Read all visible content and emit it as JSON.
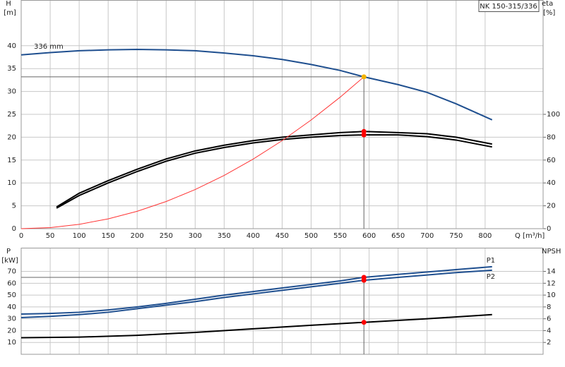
{
  "title": "NK 150-315/336",
  "chart_data": [
    {
      "type": "line",
      "x_label": "Q [m³/h]",
      "y_label": "H",
      "y_unit": "[m]",
      "y2_label": "eta",
      "y2_unit": "[%]",
      "xlim": [
        0,
        900
      ],
      "xticks": [
        0,
        50,
        100,
        150,
        200,
        250,
        300,
        350,
        400,
        450,
        500,
        550,
        600,
        650,
        700,
        750,
        800
      ],
      "ylim": [
        0,
        50
      ],
      "yticks": [
        0,
        5,
        10,
        15,
        20,
        25,
        30,
        35,
        40
      ],
      "y2lim": [
        0,
        200
      ],
      "y2ticks": [
        0,
        20,
        40,
        60,
        80,
        100
      ],
      "grid": true,
      "annotation": "336 mm",
      "series": [
        {
          "color": "#1f4f8f",
          "x": [
            0,
            50,
            100,
            150,
            200,
            250,
            300,
            350,
            400,
            450,
            500,
            550,
            591,
            650,
            700,
            750,
            812
          ],
          "values": [
            38,
            38.5,
            38.9,
            39.1,
            39.2,
            39.1,
            38.9,
            38.4,
            37.8,
            37,
            35.9,
            34.6,
            33.2,
            31.5,
            29.8,
            27.3,
            23.8
          ]
        },
        {
          "color": "#000000",
          "axis": "y2",
          "x": [
            61,
            100,
            150,
            200,
            250,
            300,
            350,
            400,
            450,
            500,
            550,
            591,
            650,
            700,
            750,
            812
          ],
          "values": [
            19,
            31,
            42,
            52,
            61,
            68,
            73,
            77,
            80,
            82,
            84,
            85,
            84,
            83,
            80,
            74
          ]
        },
        {
          "color": "#000000",
          "axis": "y2",
          "x": [
            61,
            100,
            150,
            200,
            250,
            300,
            350,
            400,
            450,
            500,
            550,
            591,
            650,
            700,
            750,
            812
          ],
          "values": [
            18,
            29,
            40,
            50,
            59,
            66,
            71,
            75,
            78,
            80,
            81.5,
            82,
            82,
            80.5,
            77.5,
            71.5
          ]
        },
        {
          "color": "#ff3333",
          "x": [
            0,
            50,
            100,
            150,
            200,
            250,
            300,
            350,
            400,
            450,
            500,
            550,
            591
          ],
          "values": [
            0,
            0.24,
            0.95,
            2.14,
            3.8,
            5.94,
            8.55,
            11.64,
            15.21,
            19.25,
            23.76,
            28.75,
            33.2
          ]
        }
      ],
      "points": [
        {
          "x": 591,
          "y": 33.2,
          "color": "#f5b400"
        },
        {
          "x": 591,
          "y": 85,
          "color": "#ff0000",
          "axis": "y2"
        },
        {
          "x": 591,
          "y": 82,
          "color": "#ff0000",
          "axis": "y2"
        }
      ]
    },
    {
      "type": "line",
      "y_label": "P",
      "y_unit": "[kW]",
      "y2_label": "NPSH",
      "xlim": [
        0,
        900
      ],
      "ylim": [
        0,
        90
      ],
      "yticks": [
        10,
        20,
        30,
        40,
        50,
        60,
        70
      ],
      "y2lim": [
        0,
        18
      ],
      "y2ticks": [
        2,
        4,
        6,
        8,
        10,
        12,
        14
      ],
      "grid": true,
      "series": [
        {
          "name": "P1",
          "color": "#1f4f8f",
          "x": [
            0,
            50,
            100,
            150,
            200,
            250,
            300,
            350,
            400,
            450,
            500,
            550,
            591,
            650,
            700,
            750,
            812
          ],
          "values": [
            34,
            34.5,
            35.5,
            37.5,
            40,
            43,
            46.5,
            50,
            53,
            56,
            59,
            62,
            65,
            67.5,
            69.5,
            71.5,
            74
          ]
        },
        {
          "name": "P2",
          "color": "#1f4f8f",
          "x": [
            0,
            50,
            100,
            150,
            200,
            250,
            300,
            350,
            400,
            450,
            500,
            550,
            591,
            650,
            700,
            750,
            812
          ],
          "values": [
            31,
            32,
            33.5,
            35.5,
            38.5,
            41.5,
            44.5,
            48,
            51,
            54,
            57,
            60,
            62.5,
            65,
            67,
            69,
            71
          ]
        },
        {
          "color": "#000000",
          "axis": "y2",
          "x": [
            0,
            100,
            200,
            300,
            400,
            500,
            591,
            700,
            812
          ],
          "values": [
            2.8,
            2.9,
            3.2,
            3.7,
            4.3,
            4.9,
            5.4,
            6.0,
            6.7
          ]
        }
      ],
      "points": [
        {
          "x": 591,
          "y": 65,
          "color": "#ff0000"
        },
        {
          "x": 591,
          "y": 62.5,
          "color": "#ff0000"
        },
        {
          "x": 591,
          "y": 5.4,
          "color": "#ff0000",
          "axis": "y2"
        }
      ]
    }
  ]
}
